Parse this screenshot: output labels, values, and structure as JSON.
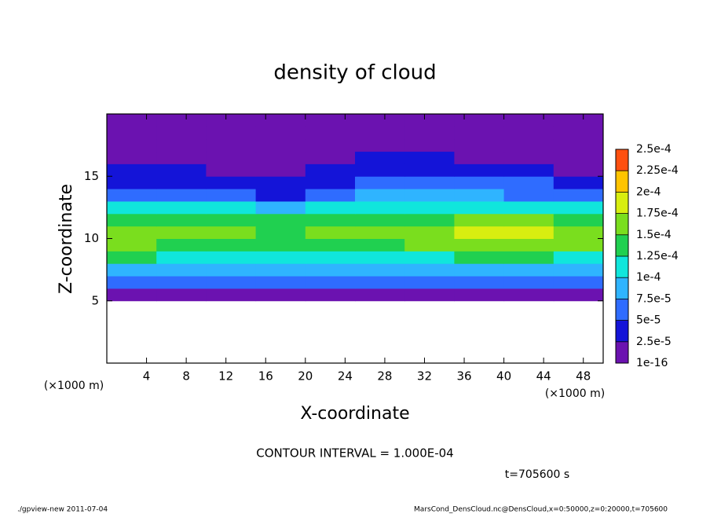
{
  "chart_data": {
    "type": "heatmap",
    "title": "density of cloud",
    "x_label": "X-coordinate",
    "y_label": "Z-coordinate",
    "x_unit_label": "(×1000 m)",
    "y_unit_label": "(×1000 m)",
    "contour_note": "CONTOUR INTERVAL = 1.000E-04",
    "time_note": "t=705600 s",
    "footer_left": "./gpview-new  2011-07-04",
    "footer_right": "MarsCond_DensCloud.nc@DensCloud,x=0:50000,z=0:20000,t=705600",
    "xlim": [
      0,
      50
    ],
    "ylim": [
      0,
      20
    ],
    "xticks": [
      4,
      8,
      12,
      16,
      20,
      24,
      28,
      32,
      36,
      40,
      44,
      48
    ],
    "yticks": [
      5,
      10,
      15
    ],
    "grid": false,
    "x_edges": [
      0,
      5,
      10,
      15,
      20,
      25,
      30,
      35,
      40,
      45,
      50
    ],
    "z_edges": [
      5,
      6,
      7,
      8,
      9,
      10,
      11,
      12,
      13,
      14,
      15,
      16,
      17,
      18,
      19,
      20
    ],
    "values": [
      [
        2e-05,
        2e-05,
        2e-05,
        2e-05,
        2e-05,
        2e-05,
        2e-05,
        2e-05,
        2e-05,
        2e-05
      ],
      [
        6e-05,
        6e-05,
        6e-05,
        6e-05,
        6e-05,
        6e-05,
        6e-05,
        6e-05,
        6e-05,
        6e-05
      ],
      [
        9e-05,
        9e-05,
        9e-05,
        9e-05,
        8e-05,
        9e-05,
        9e-05,
        9e-05,
        9e-05,
        9e-05
      ],
      [
        0.00013,
        0.00012,
        0.00012,
        0.00012,
        0.00012,
        0.00012,
        0.00012,
        0.00013,
        0.00013,
        0.00012
      ],
      [
        0.00015,
        0.00014,
        0.00014,
        0.00014,
        0.00014,
        0.00014,
        0.00015,
        0.00016,
        0.00016,
        0.00015
      ],
      [
        0.00016,
        0.00015,
        0.00015,
        0.00014,
        0.00015,
        0.00015,
        0.00016,
        0.00018,
        0.00018,
        0.00016
      ],
      [
        0.00014,
        0.00014,
        0.00013,
        0.00013,
        0.00014,
        0.00014,
        0.00014,
        0.00015,
        0.00015,
        0.00014
      ],
      [
        0.0001,
        0.0001,
        0.0001,
        9e-05,
        0.0001,
        0.00011,
        0.00011,
        0.00011,
        0.00011,
        0.0001
      ],
      [
        6e-05,
        6e-05,
        5e-05,
        4e-05,
        6e-05,
        8e-05,
        8e-05,
        8e-05,
        7e-05,
        6e-05
      ],
      [
        4e-05,
        4e-05,
        3e-05,
        3e-05,
        4e-05,
        5e-05,
        6e-05,
        6e-05,
        5e-05,
        4e-05
      ],
      [
        3e-05,
        3e-05,
        2e-05,
        2e-05,
        3e-05,
        4e-05,
        4e-05,
        4e-05,
        3e-05,
        2e-05
      ],
      [
        2e-05,
        2e-05,
        1e-05,
        1e-05,
        2e-05,
        3e-05,
        3e-05,
        2e-05,
        2e-05,
        1e-05
      ],
      [
        5e-06,
        1e-05,
        1e-05,
        1e-05,
        1e-05,
        2e-05,
        2e-05,
        1e-05,
        1e-05,
        5e-06
      ],
      [
        1e-06,
        5e-06,
        5e-06,
        5e-06,
        5e-06,
        1e-05,
        1e-05,
        5e-06,
        5e-06,
        1e-06
      ],
      [
        1e-06,
        1e-06,
        1e-06,
        1e-06,
        1e-06,
        1e-06,
        1e-06,
        1e-06,
        1e-06,
        1e-06
      ]
    ],
    "colorbar_ticks": [
      1e-16,
      {
        "value": 2.5e-05,
        "label": "2.5e-5"
      },
      {
        "value": 5e-05,
        "label": "5e-5"
      },
      {
        "value": 7.5e-05,
        "label": "7.5e-5"
      },
      {
        "value": 0.0001,
        "label": "1e-4"
      },
      {
        "value": 0.000125,
        "label": "1.25e-4"
      },
      {
        "value": 0.00015,
        "label": "1.5e-4"
      },
      {
        "value": 0.000175,
        "label": "1.75e-4"
      },
      {
        "value": 0.0002,
        "label": "2e-4"
      },
      {
        "value": 0.000225,
        "label": "2.25e-4"
      },
      {
        "value": 0.00025,
        "label": "2.5e-4"
      }
    ],
    "colors": [
      "#6b12b0",
      "#1414d8",
      "#2f6cff",
      "#2fb4ff",
      "#10e6dc",
      "#20d050",
      "#7ade1e",
      "#d8ee10",
      "#ffc400",
      "#ff5010",
      "#ff6a8a"
    ]
  }
}
